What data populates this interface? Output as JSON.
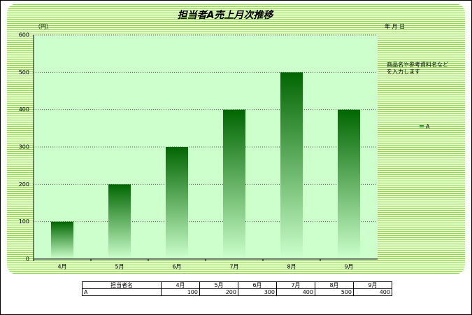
{
  "chart_data": {
    "type": "bar",
    "title": "担当者A売上月次推移",
    "y_unit": "（円）",
    "date_label": "年 月 日",
    "note": "商品名や参考資料名などを入力します",
    "categories": [
      "4月",
      "5月",
      "6月",
      "7月",
      "8月",
      "9月"
    ],
    "series": [
      {
        "name": "A",
        "color": "#006600",
        "values": [
          100,
          200,
          300,
          400,
          500,
          400
        ]
      }
    ],
    "ylim": [
      0,
      600
    ],
    "yticks": [
      0,
      100,
      200,
      300,
      400,
      500,
      600
    ],
    "grid": true,
    "table_header": "担当者名"
  }
}
